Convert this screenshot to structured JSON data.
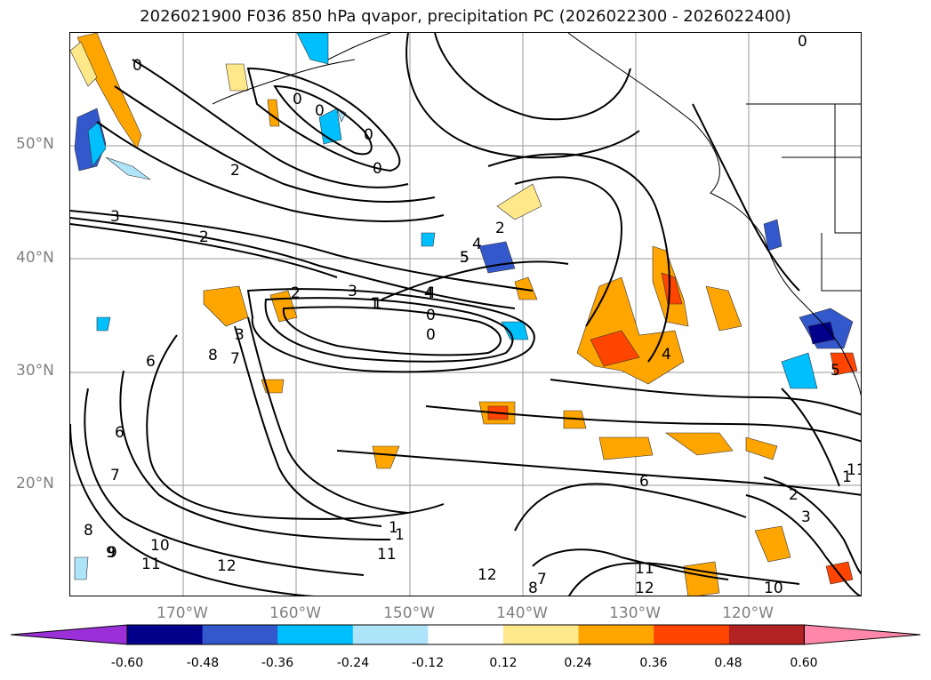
{
  "title": "2026021900 F036 850 hPa qvapor, precipitation PC (2026022300 - 2026022400)",
  "map": {
    "lat_labels": [
      "50°N",
      "40°N",
      "30°N",
      "20°N"
    ],
    "lon_labels": [
      "170°W",
      "160°W",
      "150°W",
      "140°W",
      "130°W",
      "120°W"
    ],
    "contour_labels": [
      "0",
      "0",
      "0",
      "0",
      "0",
      "2",
      "3",
      "2",
      "1",
      "1",
      "2",
      "3",
      "4",
      "4",
      "5",
      "0",
      "0",
      "1",
      "2",
      "3",
      "4",
      "5",
      "6",
      "7",
      "8",
      "6",
      "7",
      "8",
      "9",
      "10",
      "11",
      "12",
      "11",
      "12",
      "11",
      "12",
      "6",
      "5",
      "1",
      "2",
      "3",
      "10",
      "11",
      "0",
      "1",
      "8",
      "7",
      "9",
      "4",
      "5"
    ]
  },
  "colorbar": {
    "colors": [
      "#9b30d9",
      "#00008b",
      "#3358cc",
      "#00bfff",
      "#aee4f9",
      "#ffffff",
      "#ffe88a",
      "#ffa500",
      "#ff4500",
      "#b22222",
      "#ff88aa"
    ],
    "tick_labels": [
      "-0.60",
      "-0.48",
      "-0.36",
      "-0.24",
      "-0.12",
      "0.12",
      "0.24",
      "0.36",
      "0.48",
      "0.60"
    ]
  }
}
